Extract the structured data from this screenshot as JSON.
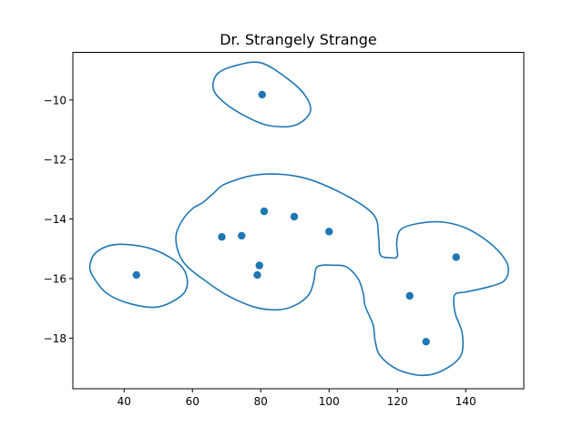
{
  "chart_data": {
    "type": "scatter",
    "title": "Dr. Strangely Strange",
    "xlabel": "",
    "ylabel": "",
    "xlim": [
      25,
      157
    ],
    "ylim": [
      -19.7,
      -8.4
    ],
    "grid": false,
    "legend": "none",
    "x_ticks": [
      40,
      60,
      80,
      100,
      120,
      140
    ],
    "x_tick_labels": [
      "40",
      "60",
      "80",
      "100",
      "120",
      "140"
    ],
    "y_ticks": [
      -10,
      -12,
      -14,
      -16,
      -18
    ],
    "y_tick_labels": [
      "−10",
      "−12",
      "−14",
      "−16",
      "−18"
    ],
    "color": "#1f77b4",
    "points": [
      {
        "x": 80.4,
        "y": -9.82
      },
      {
        "x": 81.0,
        "y": -13.74
      },
      {
        "x": 89.8,
        "y": -13.92
      },
      {
        "x": 100.0,
        "y": -14.42
      },
      {
        "x": 68.6,
        "y": -14.6
      },
      {
        "x": 74.4,
        "y": -14.56
      },
      {
        "x": 79.6,
        "y": -15.56
      },
      {
        "x": 79.0,
        "y": -15.88
      },
      {
        "x": 43.6,
        "y": -15.88
      },
      {
        "x": 137.2,
        "y": -15.28
      },
      {
        "x": 123.6,
        "y": -16.58
      },
      {
        "x": 128.4,
        "y": -18.12
      }
    ],
    "contours": [
      {
        "name": "top-loop",
        "x": [
          72.5,
          80,
          88,
          93,
          94.5,
          90,
          82,
          74,
          68,
          66,
          67.5,
          72.5
        ],
        "y": [
          -8.85,
          -8.75,
          -9.3,
          -9.85,
          -10.4,
          -10.85,
          -10.85,
          -10.45,
          -9.95,
          -9.55,
          -9.1,
          -8.85
        ]
      },
      {
        "name": "left-loop",
        "x": [
          38,
          48,
          56,
          58.5,
          57,
          50,
          42,
          35,
          31,
          30,
          32,
          38
        ],
        "y": [
          -14.85,
          -15.0,
          -15.5,
          -16.05,
          -16.55,
          -16.95,
          -16.85,
          -16.5,
          -15.95,
          -15.55,
          -15.1,
          -14.85
        ]
      },
      {
        "name": "large-loop",
        "x": [
          66,
          70,
          80,
          92,
          104,
          113,
          114.5,
          115,
          118,
          120,
          119.8,
          121,
          126,
          133,
          140,
          147,
          151.5,
          152.5,
          151,
          146,
          140,
          137.2,
          136.5,
          137,
          139,
          138.5,
          133,
          127,
          120,
          115,
          113.5,
          113,
          112,
          110.5,
          110,
          108.5,
          105,
          101,
          98,
          96.2,
          95.5,
          94,
          90,
          85,
          78,
          70,
          63.5,
          58.5,
          56,
          55.2,
          57,
          60,
          63,
          66
        ],
        "y": [
          -13.15,
          -12.8,
          -12.5,
          -12.6,
          -13.15,
          -13.85,
          -14.6,
          -15.2,
          -15.3,
          -15.25,
          -14.8,
          -14.35,
          -14.15,
          -14.1,
          -14.3,
          -14.8,
          -15.35,
          -15.75,
          -16.1,
          -16.3,
          -16.45,
          -16.5,
          -16.7,
          -17.2,
          -17.85,
          -18.6,
          -19.1,
          -19.25,
          -19.05,
          -18.6,
          -18.1,
          -17.6,
          -17.3,
          -16.9,
          -16.5,
          -16.0,
          -15.6,
          -15.55,
          -15.55,
          -15.65,
          -16.1,
          -16.55,
          -16.9,
          -17.05,
          -16.95,
          -16.55,
          -16.05,
          -15.6,
          -15.15,
          -14.55,
          -14.05,
          -13.65,
          -13.45,
          -13.15
        ]
      }
    ]
  }
}
